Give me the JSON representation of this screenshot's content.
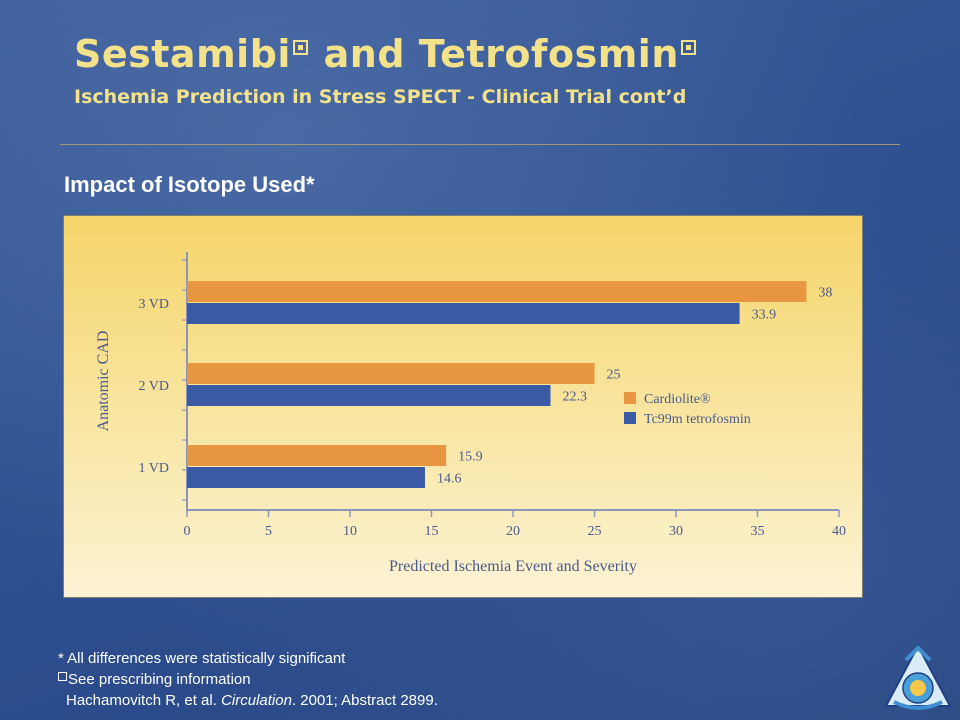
{
  "slide": {
    "title_part1": "Sestamibi",
    "title_part2": " and Tetrofosmin",
    "subtitle": "Ischemia Prediction in Stress SPECT - Clinical Trial cont’d",
    "section_heading": "Impact of Isotope Used*"
  },
  "footnotes": {
    "significance": "* All differences were statistically significant",
    "prescribing": "See prescribing information",
    "reference_authors": "Hachamovitch R, et al. ",
    "reference_journal": "Circulation",
    "reference_rest": ". 2001; Abstract 2899."
  },
  "chart_data": {
    "type": "bar",
    "orientation": "horizontal",
    "categories": [
      "3 VD",
      "2 VD",
      "1 VD"
    ],
    "series": [
      {
        "name": "Cardiolite®",
        "values": [
          38,
          25,
          15.9
        ],
        "color": "#e8963f"
      },
      {
        "name": "Tc99m tetrofosmin",
        "values": [
          33.9,
          22.3,
          14.6
        ],
        "color": "#3a5aa6"
      }
    ],
    "data_labels": [
      [
        "38",
        "25",
        "15.9"
      ],
      [
        "33.9",
        "22.3",
        "14.6"
      ]
    ],
    "xlabel": "Predicted Ischemia Event and Severity",
    "ylabel": "Anatomic CAD",
    "xlim": [
      0,
      40
    ],
    "xticks": [
      0,
      5,
      10,
      15,
      20,
      25,
      30,
      35,
      40
    ],
    "xtick_labels": [
      "0",
      "5",
      "10",
      "15",
      "20",
      "25",
      "30",
      "35",
      "40"
    ],
    "grid": false,
    "legend": "right"
  },
  "colors": {
    "title": "#f3e28a",
    "axis": "#8a96b8",
    "chart_text": "#4a5a8c"
  }
}
